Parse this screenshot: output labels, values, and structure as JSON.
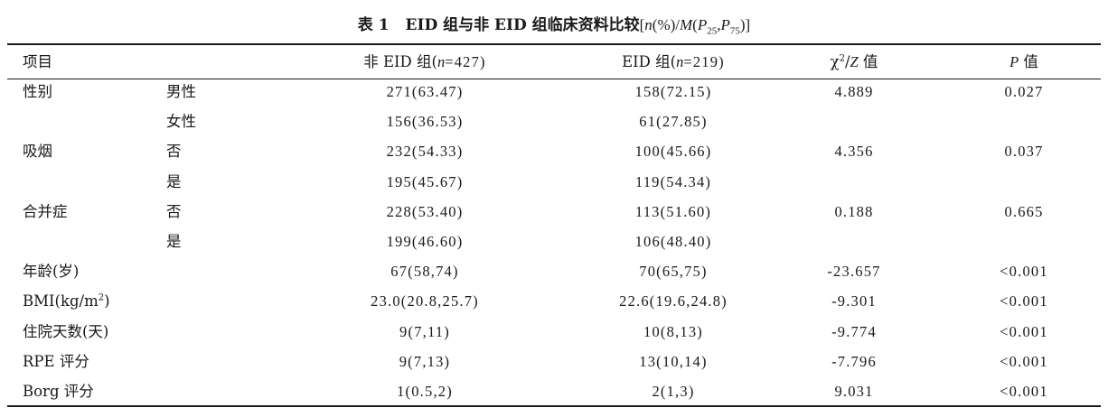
{
  "caption": {
    "label": "表 1",
    "title": "EID 组与非 EID 组临床资料比较",
    "stat_open": "[",
    "stat_n": "n",
    "stat_pct": "(%)/",
    "stat_M": "M",
    "stat_paren_open": "(",
    "stat_P": "P",
    "stat_sub25": "25",
    "stat_comma": ",",
    "stat_P2": "P",
    "stat_sub75": "75",
    "stat_close": ")]"
  },
  "header": {
    "item": "项目",
    "group_non_eid": "非 EID 组(",
    "group_non_eid_n": "n",
    "group_non_eid_count": "=427)",
    "group_eid": "EID 组(",
    "group_eid_n": "n",
    "group_eid_count": "=219)",
    "stat_chi": "χ",
    "stat_sup": "2",
    "stat_slash": "/",
    "stat_z": "Z",
    "stat_val": " 值",
    "p": "P",
    "p_val": " 值"
  },
  "rows": [
    {
      "item": "性别",
      "sub": "男性",
      "non_eid": "271(63.47)",
      "eid": "158(72.15)",
      "stat": "4.889",
      "p": "0.027"
    },
    {
      "item": "",
      "sub": "女性",
      "non_eid": "156(36.53)",
      "eid": "61(27.85)",
      "stat": "",
      "p": ""
    },
    {
      "item": "吸烟",
      "sub": "否",
      "non_eid": "232(54.33)",
      "eid": "100(45.66)",
      "stat": "4.356",
      "p": "0.037"
    },
    {
      "item": "",
      "sub": "是",
      "non_eid": "195(45.67)",
      "eid": "119(54.34)",
      "stat": "",
      "p": ""
    },
    {
      "item": "合并症",
      "sub": "否",
      "non_eid": "228(53.40)",
      "eid": "113(51.60)",
      "stat": "0.188",
      "p": "0.665"
    },
    {
      "item": "",
      "sub": "是",
      "non_eid": "199(46.60)",
      "eid": "106(48.40)",
      "stat": "",
      "p": ""
    },
    {
      "item": "年龄(岁)",
      "sub": "",
      "non_eid": "67(58,74)",
      "eid": "70(65,75)",
      "stat": "-23.657",
      "p": "<0.001"
    },
    {
      "item": "BMI(kg/m",
      "item_sup": "2",
      "item_tail": ")",
      "sub": "",
      "non_eid": "23.0(20.8,25.7)",
      "eid": "22.6(19.6,24.8)",
      "stat": "-9.301",
      "p": "<0.001"
    },
    {
      "item": "住院天数(天)",
      "sub": "",
      "non_eid": "9(7,11)",
      "eid": "10(8,13)",
      "stat": "-9.774",
      "p": "<0.001"
    },
    {
      "item": "RPE 评分",
      "sub": "",
      "non_eid": "9(7,13)",
      "eid": "13(10,14)",
      "stat": "-7.796",
      "p": "<0.001"
    },
    {
      "item": "Borg 评分",
      "sub": "",
      "non_eid": "1(0.5,2)",
      "eid": "2(1,3)",
      "stat": "9.031",
      "p": "<0.001"
    }
  ]
}
